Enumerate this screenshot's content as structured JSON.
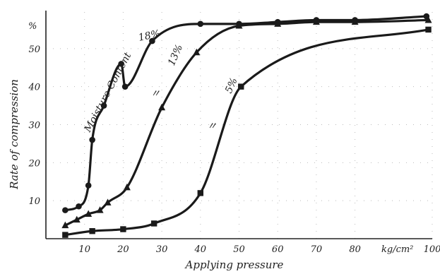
{
  "chart_data": {
    "type": "line",
    "xlabel": "Applying pressure",
    "ylabel": "Rate of compression",
    "x_unit_label": "kg/cm²",
    "y_unit_label": "%",
    "xlim": [
      0,
      100
    ],
    "ylim": [
      0,
      60
    ],
    "x_ticks": [
      10,
      20,
      30,
      40,
      50,
      60,
      70,
      80,
      100
    ],
    "y_ticks": [
      10,
      20,
      30,
      40,
      50
    ],
    "grid": true,
    "legend": "none",
    "series_label_prefix": "Moisture Content",
    "ditto_mark": "〃",
    "series": [
      {
        "name": "18%",
        "marker": "circle",
        "points": [
          [
            5,
            7.5
          ],
          [
            8.5,
            8.5
          ],
          [
            11,
            14
          ],
          [
            12,
            26
          ],
          [
            15,
            35
          ],
          [
            19.5,
            46
          ],
          [
            20.5,
            40
          ],
          [
            27.5,
            52
          ],
          [
            40,
            56.5
          ],
          [
            50,
            56.5
          ],
          [
            60,
            57
          ],
          [
            70,
            57.5
          ],
          [
            80,
            57.5
          ],
          [
            98.5,
            58.5
          ]
        ]
      },
      {
        "name": "13%",
        "marker": "triangle",
        "points": [
          [
            5,
            3.5
          ],
          [
            8,
            5
          ],
          [
            11,
            6.5
          ],
          [
            14,
            7.5
          ],
          [
            16,
            9.5
          ],
          [
            21,
            13.5
          ],
          [
            30,
            34.5
          ],
          [
            39,
            49
          ],
          [
            50,
            56
          ],
          [
            60,
            56.5
          ],
          [
            70,
            57
          ],
          [
            80,
            57
          ],
          [
            99,
            57.5
          ]
        ]
      },
      {
        "name": "5%",
        "marker": "square",
        "points": [
          [
            5,
            1
          ],
          [
            12,
            2
          ],
          [
            20,
            2.5
          ],
          [
            28,
            4
          ],
          [
            40,
            12
          ],
          [
            50.5,
            40
          ],
          [
            99,
            55
          ]
        ]
      }
    ]
  }
}
